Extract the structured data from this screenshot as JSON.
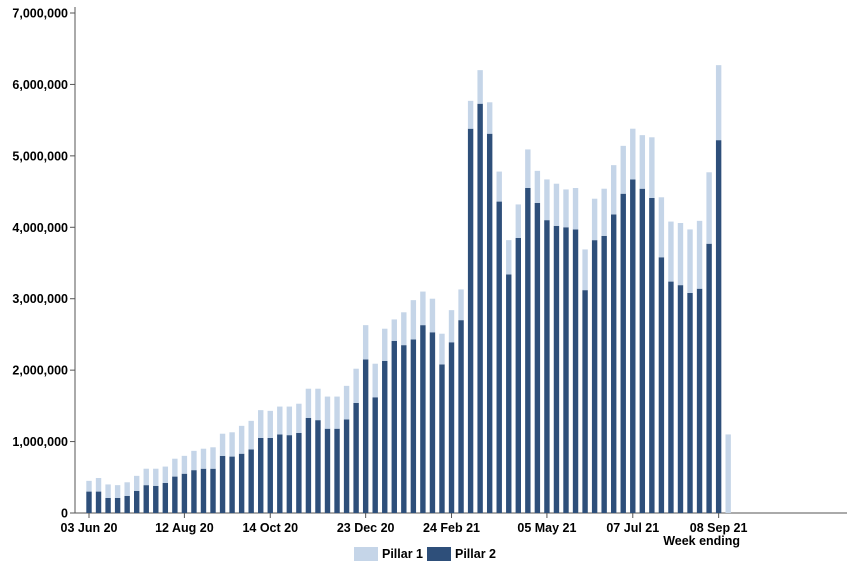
{
  "chart_data": {
    "type": "bar",
    "stacked": true,
    "xlabel": "Week ending",
    "ylim": [
      0,
      7000000
    ],
    "y_ticks": [
      "0",
      "1,000,000",
      "2,000,000",
      "3,000,000",
      "4,000,000",
      "5,000,000",
      "6,000,000",
      "7,000,000"
    ],
    "x_tick_labels": [
      {
        "index": 0,
        "label": "03 Jun 20"
      },
      {
        "index": 10,
        "label": "12 Aug 20"
      },
      {
        "index": 19,
        "label": "14 Oct 20"
      },
      {
        "index": 29,
        "label": "23 Dec 20"
      },
      {
        "index": 38,
        "label": "24 Feb 21"
      },
      {
        "index": 48,
        "label": "05 May 21"
      },
      {
        "index": 57,
        "label": "07 Jul 21"
      },
      {
        "index": 66,
        "label": "08 Sep 21"
      }
    ],
    "grid": false,
    "legend_position": "bottom",
    "series": [
      {
        "name": "Pillar 1",
        "color": "#c5d5e8",
        "values": [
          150000,
          190000,
          190000,
          180000,
          190000,
          210000,
          230000,
          240000,
          230000,
          250000,
          250000,
          270000,
          280000,
          300000,
          310000,
          340000,
          390000,
          400000,
          390000,
          380000,
          390000,
          400000,
          410000,
          410000,
          440000,
          450000,
          450000,
          470000,
          480000,
          480000,
          470000,
          450000,
          300000,
          460000,
          550000,
          470000,
          470000,
          430000,
          450000,
          430000,
          390000,
          470000,
          440000,
          420000,
          480000,
          470000,
          540000,
          450000,
          570000,
          590000,
          530000,
          580000,
          570000,
          580000,
          660000,
          690000,
          670000,
          710000,
          750000,
          850000,
          840000,
          840000,
          870000,
          890000,
          950000,
          1000000,
          1050000,
          1100000
        ]
      },
      {
        "name": "Pillar 2",
        "color": "#2e4f7a",
        "values": [
          300000,
          300000,
          210000,
          210000,
          240000,
          310000,
          390000,
          380000,
          420000,
          510000,
          550000,
          600000,
          620000,
          620000,
          800000,
          790000,
          830000,
          890000,
          1050000,
          1050000,
          1100000,
          1090000,
          1120000,
          1330000,
          1300000,
          1180000,
          1180000,
          1310000,
          1540000,
          2150000,
          1620000,
          2130000,
          2410000,
          2350000,
          2430000,
          2630000,
          2530000,
          2080000,
          2390000,
          2700000,
          5380000,
          5730000,
          5310000,
          4360000,
          3340000,
          3850000,
          4550000,
          4340000,
          4100000,
          4020000,
          4000000,
          3970000,
          3120000,
          3820000,
          3880000,
          4180000,
          4470000,
          4670000,
          4540000,
          4410000,
          3580000,
          3240000,
          3190000,
          3080000,
          3140000,
          3770000,
          5220000,
          0
        ]
      }
    ]
  }
}
